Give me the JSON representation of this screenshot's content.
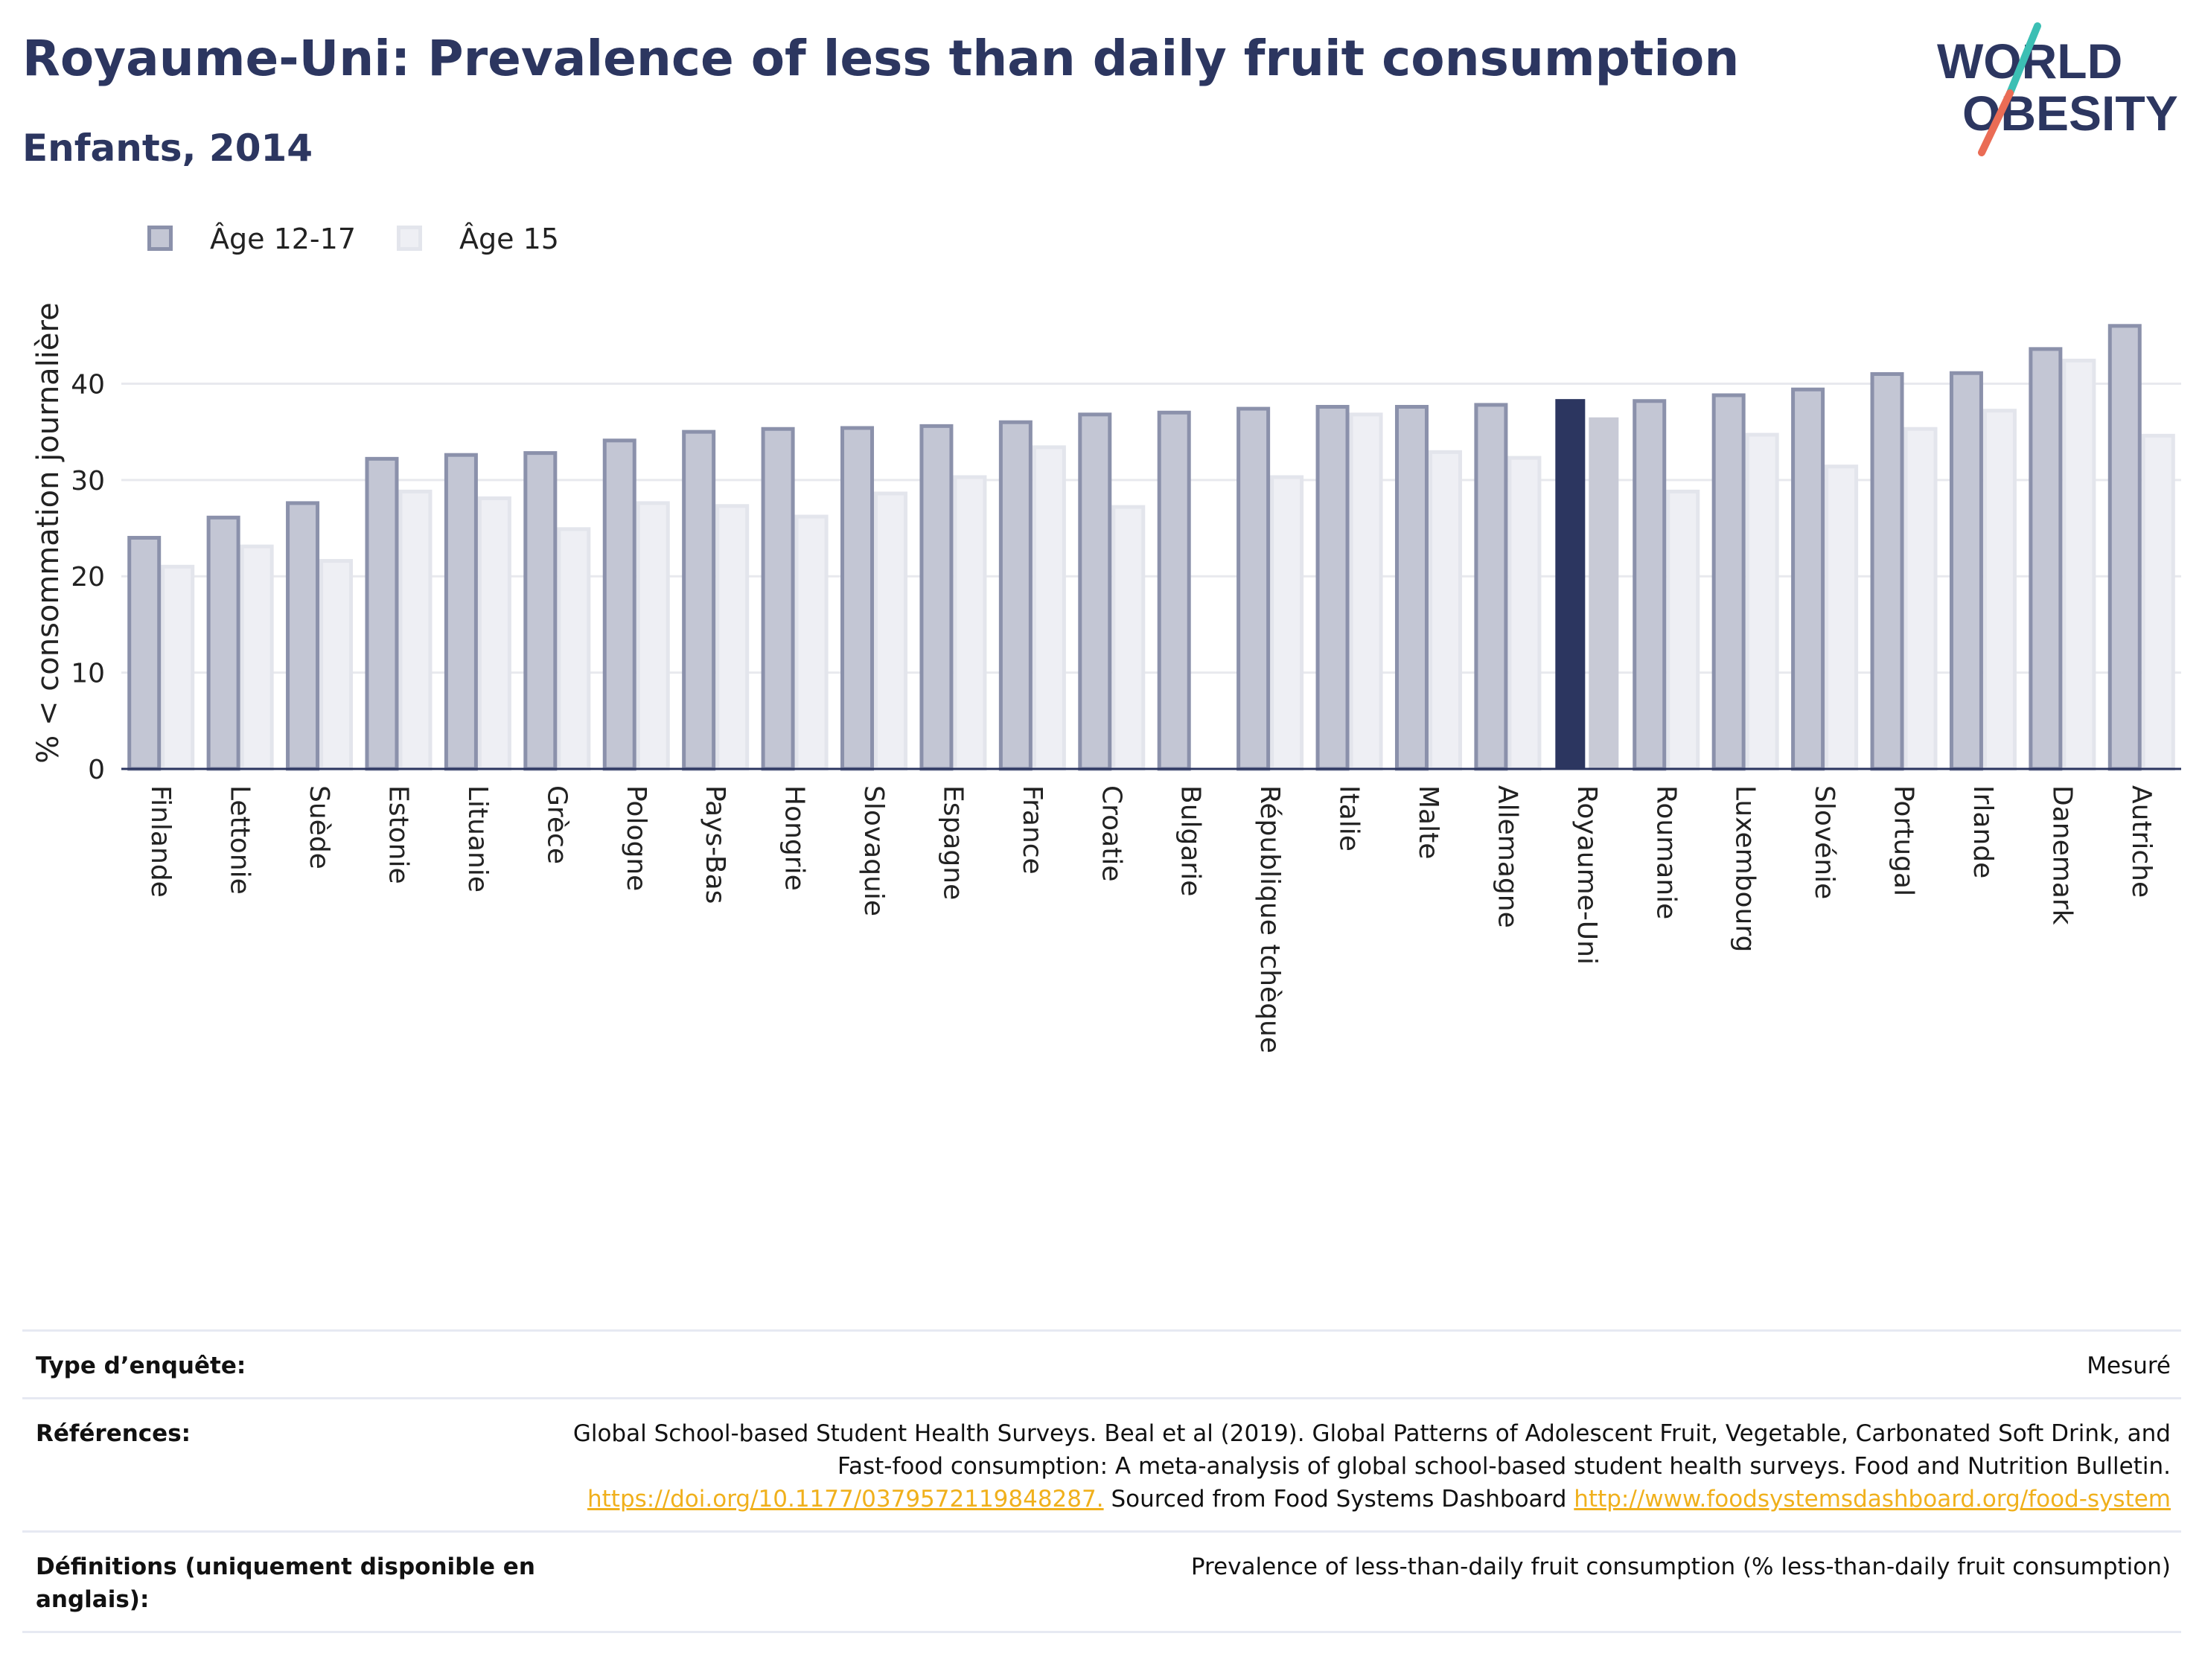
{
  "header": {
    "title": "Royaume-Uni: Prevalence of less than daily fruit consumption",
    "subtitle": "Enfants, 2014"
  },
  "logo": {
    "line1": "WORLD",
    "line2": "OBESITY",
    "colors": {
      "text": "#2c3660",
      "slash_top": "#3cbfb4",
      "slash_bottom": "#ea6c55"
    }
  },
  "colors": {
    "series1_fill": "#c3c6d4",
    "series1_stroke": "#8b91ab",
    "series2_fill": "#eeeff4",
    "series2_stroke": "#e3e5ec",
    "highlight_s1": "#2c3660",
    "highlight_s2": "#c8cad6",
    "axis": "#2c3660",
    "grid": "#e8e9ee"
  },
  "chart_data": {
    "type": "bar",
    "ylabel": "% < consommation journalière",
    "ylim": [
      0,
      49
    ],
    "yticks": [
      0,
      10,
      20,
      30,
      40
    ],
    "grid": true,
    "legend_position": "top-left",
    "highlight": "Royaume-Uni",
    "categories": [
      "Finlande",
      "Lettonie",
      "Suède",
      "Estonie",
      "Lituanie",
      "Grèce",
      "Pologne",
      "Pays-Bas",
      "Hongrie",
      "Slovaquie",
      "Espagne",
      "France",
      "Croatie",
      "Bulgarie",
      "République tchèque",
      "Italie",
      "Malte",
      "Allemagne",
      "Royaume-Uni",
      "Roumanie",
      "Luxembourg",
      "Slovénie",
      "Portugal",
      "Irlande",
      "Danemark",
      "Autriche"
    ],
    "series": [
      {
        "name": "Âge 12-17",
        "values": [
          24.0,
          26.1,
          27.6,
          32.2,
          32.6,
          32.8,
          34.1,
          35.0,
          35.3,
          35.4,
          35.6,
          36.0,
          36.8,
          37.0,
          37.4,
          37.6,
          37.6,
          37.8,
          38.4,
          38.2,
          38.8,
          39.4,
          41.0,
          41.1,
          43.6,
          46.0
        ]
      },
      {
        "name": "Âge 15",
        "values": [
          21.0,
          23.1,
          21.6,
          28.8,
          28.1,
          24.9,
          27.6,
          27.3,
          26.2,
          28.6,
          30.3,
          33.4,
          27.2,
          null,
          30.3,
          36.8,
          32.9,
          32.3,
          36.5,
          28.8,
          34.7,
          31.4,
          35.3,
          37.2,
          42.4,
          34.6
        ]
      }
    ]
  },
  "meta": [
    {
      "label": "Type d’enquête:",
      "value": "Mesuré"
    },
    {
      "label": "Références:",
      "text1": "Global School-based Student Health Surveys. Beal et al (2019). Global Patterns of Adolescent Fruit, Vegetable, Carbonated Soft Drink, and Fast-food consumption: A meta-analysis of global school-based student health surveys. Food and Nutrition Bulletin.",
      "link1": "https://doi.org/10.1177/0379572119848287.",
      "text2": "Sourced from Food Systems Dashboard",
      "link2": "http://www.foodsystemsdashboard.org/food-system"
    },
    {
      "label": "Définitions (uniquement disponible en anglais):",
      "value": "Prevalence of less-than-daily fruit consumption (% less-than-daily fruit consumption)"
    }
  ]
}
